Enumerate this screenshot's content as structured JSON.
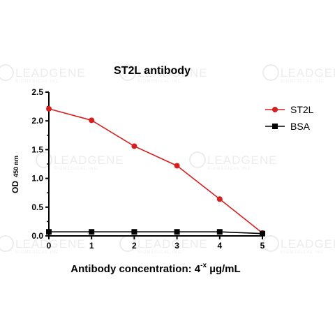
{
  "watermark": {
    "brand": "LEADGENE",
    "tagline": "BIOMEDICAL INC."
  },
  "chart_data": {
    "type": "line",
    "title": "ST2L antibody",
    "ylabel": "OD",
    "ylabel_sub": "450 nm",
    "xlabel": "Antibody concentration: 4",
    "xlabel_sup": "-x",
    "xlabel_unit": " µg/mL",
    "x": [
      0,
      1,
      2,
      3,
      4,
      5
    ],
    "xlim": [
      0,
      5
    ],
    "ylim": [
      0,
      2.5
    ],
    "xticks": [
      0,
      1,
      2,
      3,
      4,
      5
    ],
    "yticks": [
      0.0,
      0.5,
      1.0,
      1.5,
      2.0,
      2.5
    ],
    "ytick_labels": [
      "0.0",
      "0.5",
      "1.0",
      "1.5",
      "2.0",
      "2.5"
    ],
    "grid": false,
    "legend_position": "top-right",
    "series": [
      {
        "name": "ST2L",
        "color": "#d61f1f",
        "marker": "circle",
        "values": [
          2.21,
          2.01,
          1.56,
          1.22,
          0.64,
          0.05
        ]
      },
      {
        "name": "BSA",
        "color": "#000000",
        "marker": "square",
        "values": [
          0.07,
          0.07,
          0.07,
          0.07,
          0.07,
          0.04
        ]
      }
    ]
  }
}
